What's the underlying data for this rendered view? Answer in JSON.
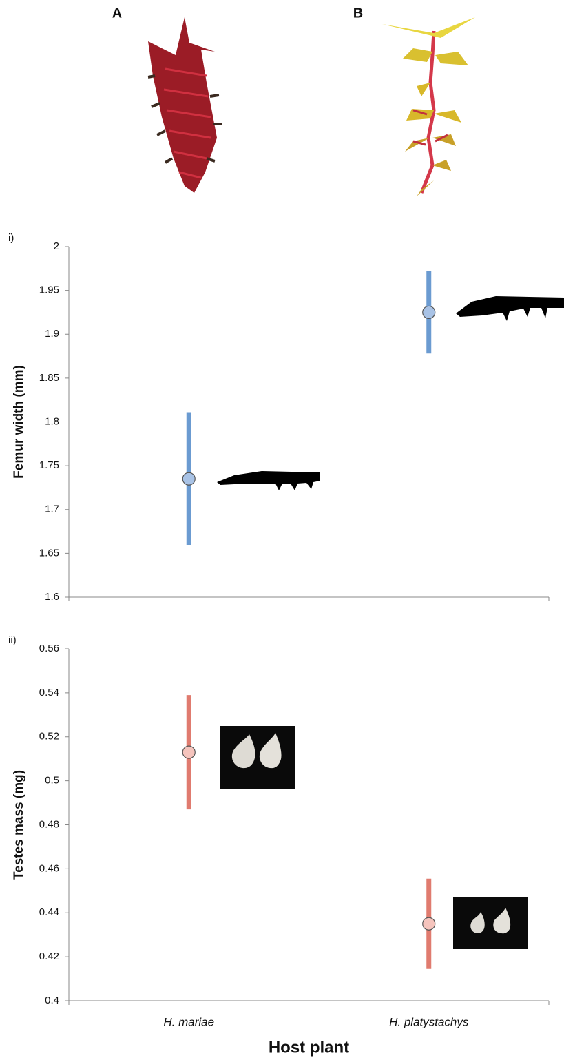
{
  "figure": {
    "panel_labels": [
      "A",
      "B"
    ]
  },
  "chart_data": [
    {
      "type": "errorpoint",
      "label": "i)",
      "y_label": "Femur width (mm)",
      "series": [
        {
          "color": "#6b9bd1",
          "marker_color": "#a9c3e6",
          "values": [
            1.735,
            1.925
          ],
          "errors": [
            0.076,
            0.047
          ]
        }
      ],
      "ylim": [
        1.6,
        2
      ],
      "yticks": [
        1.6,
        1.65,
        1.7,
        1.75,
        1.8,
        1.85,
        1.9,
        1.95,
        2
      ],
      "grid": false
    },
    {
      "type": "errorpoint",
      "label": "ii)",
      "y_label": "Testes mass (mg)",
      "x_label": "Host plant",
      "categories": [
        "H. mariae",
        "H. platystachys"
      ],
      "series": [
        {
          "color": "#e07b6f",
          "marker_color": "#f5c4bd",
          "values": [
            0.513,
            0.435
          ],
          "errors": [
            0.026,
            0.0205
          ]
        }
      ],
      "ylim": [
        0.4,
        0.56
      ],
      "yticks": [
        0.4,
        0.42,
        0.44,
        0.46,
        0.48,
        0.5,
        0.52,
        0.54,
        0.56
      ],
      "grid": false
    }
  ]
}
